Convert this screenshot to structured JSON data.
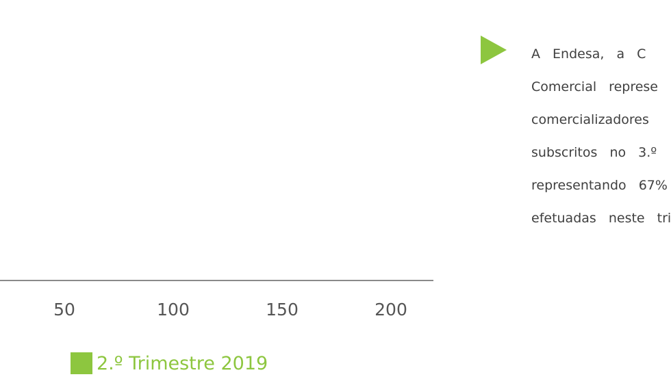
{
  "chart_data": {
    "type": "bar",
    "orientation": "horizontal",
    "x_ticks": [
      "50",
      "100",
      "150",
      "200"
    ],
    "x_tick_values": [
      50,
      100,
      150,
      200
    ],
    "series": [
      {
        "name": "2.º Trimestre 2019",
        "color": "#8dc63f",
        "values": []
      }
    ],
    "legend_position": "bottom"
  },
  "text_block": {
    "bullet_icon": "triangle-right-icon",
    "bullet_color": "#8dc63f",
    "lines": [
      "A Endesa, a C",
      "Comercial represe",
      "comercializadores",
      "subscritos no 3.º",
      "representando 67%",
      "efetuadas neste tri"
    ]
  }
}
